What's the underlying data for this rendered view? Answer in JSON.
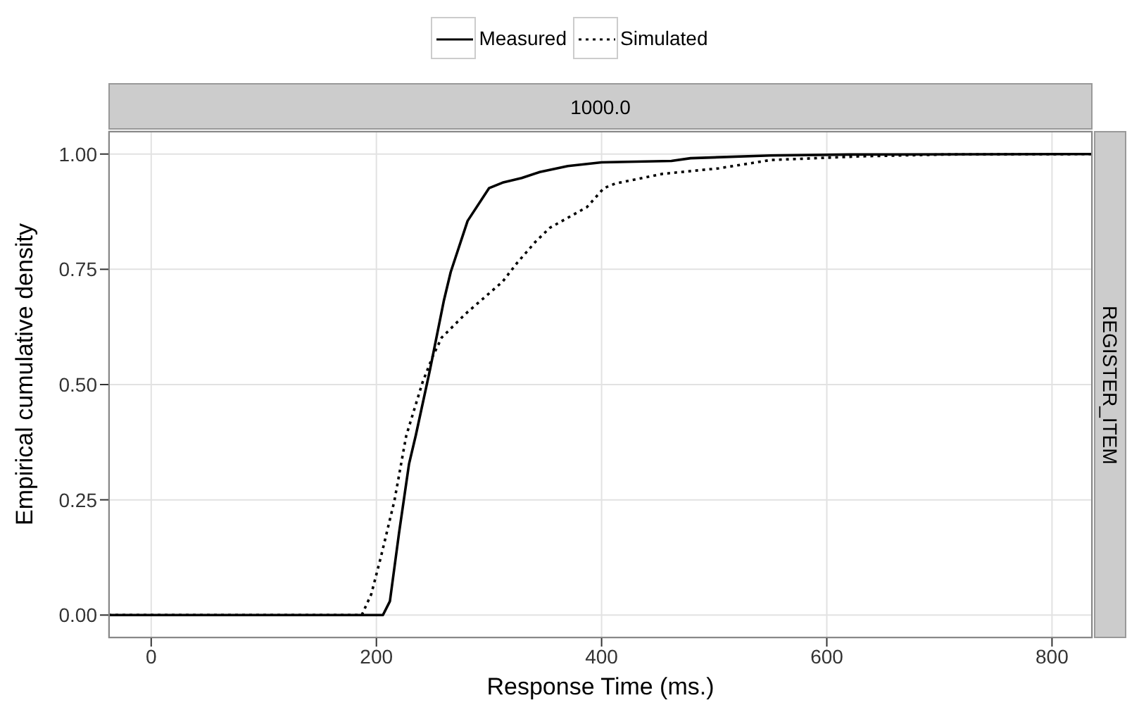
{
  "chart_data": {
    "type": "line",
    "xlabel": "Response Time (ms.)",
    "ylabel": "Empirical cumulative density",
    "annotations": [
      "1000.0",
      "REGISTER_ITEM"
    ],
    "xlim": [
      -38,
      836
    ],
    "xticks": [
      0,
      200,
      400,
      600,
      800
    ],
    "ylim": [
      -0.05,
      1.05
    ],
    "yticks": [
      {
        "value": 0,
        "label": "0.00"
      },
      {
        "value": 0.25,
        "label": "0.25"
      },
      {
        "value": 0.5,
        "label": "0.50"
      },
      {
        "value": 0.75,
        "label": "0.75"
      },
      {
        "value": 1,
        "label": "1.00"
      }
    ],
    "grid": true,
    "legend": "top",
    "marker": "none",
    "series": [
      {
        "name": "Measured",
        "color": "#000000",
        "line_style": "solid",
        "x": [
          -38,
          205.8,
          212,
          220,
          229,
          235,
          247.5,
          260,
          266,
          281,
          300,
          312,
          329,
          345,
          370,
          400,
          462,
          479,
          550,
          620,
          836
        ],
        "values": [
          0,
          0,
          0.03,
          0.176,
          0.328,
          0.39,
          0.531,
          0.683,
          0.744,
          0.855,
          0.926,
          0.938,
          0.948,
          0.961,
          0.974,
          0.982,
          0.985,
          0.991,
          0.997,
          0.999,
          1
        ]
      },
      {
        "name": "Simulated",
        "color": "#000000",
        "line_style": "dotted",
        "x": [
          -38,
          187,
          195.4,
          204,
          216,
          226.5,
          241,
          250,
          258,
          279,
          312,
          325,
          341,
          354,
          387,
          402,
          412,
          454,
          504,
          550,
          629,
          704,
          836
        ],
        "values": [
          0,
          0,
          0.045,
          0.126,
          0.248,
          0.389,
          0.505,
          0.561,
          0.602,
          0.653,
          0.723,
          0.764,
          0.809,
          0.84,
          0.885,
          0.926,
          0.936,
          0.957,
          0.969,
          0.987,
          0.995,
          0.999,
          1
        ]
      }
    ]
  }
}
